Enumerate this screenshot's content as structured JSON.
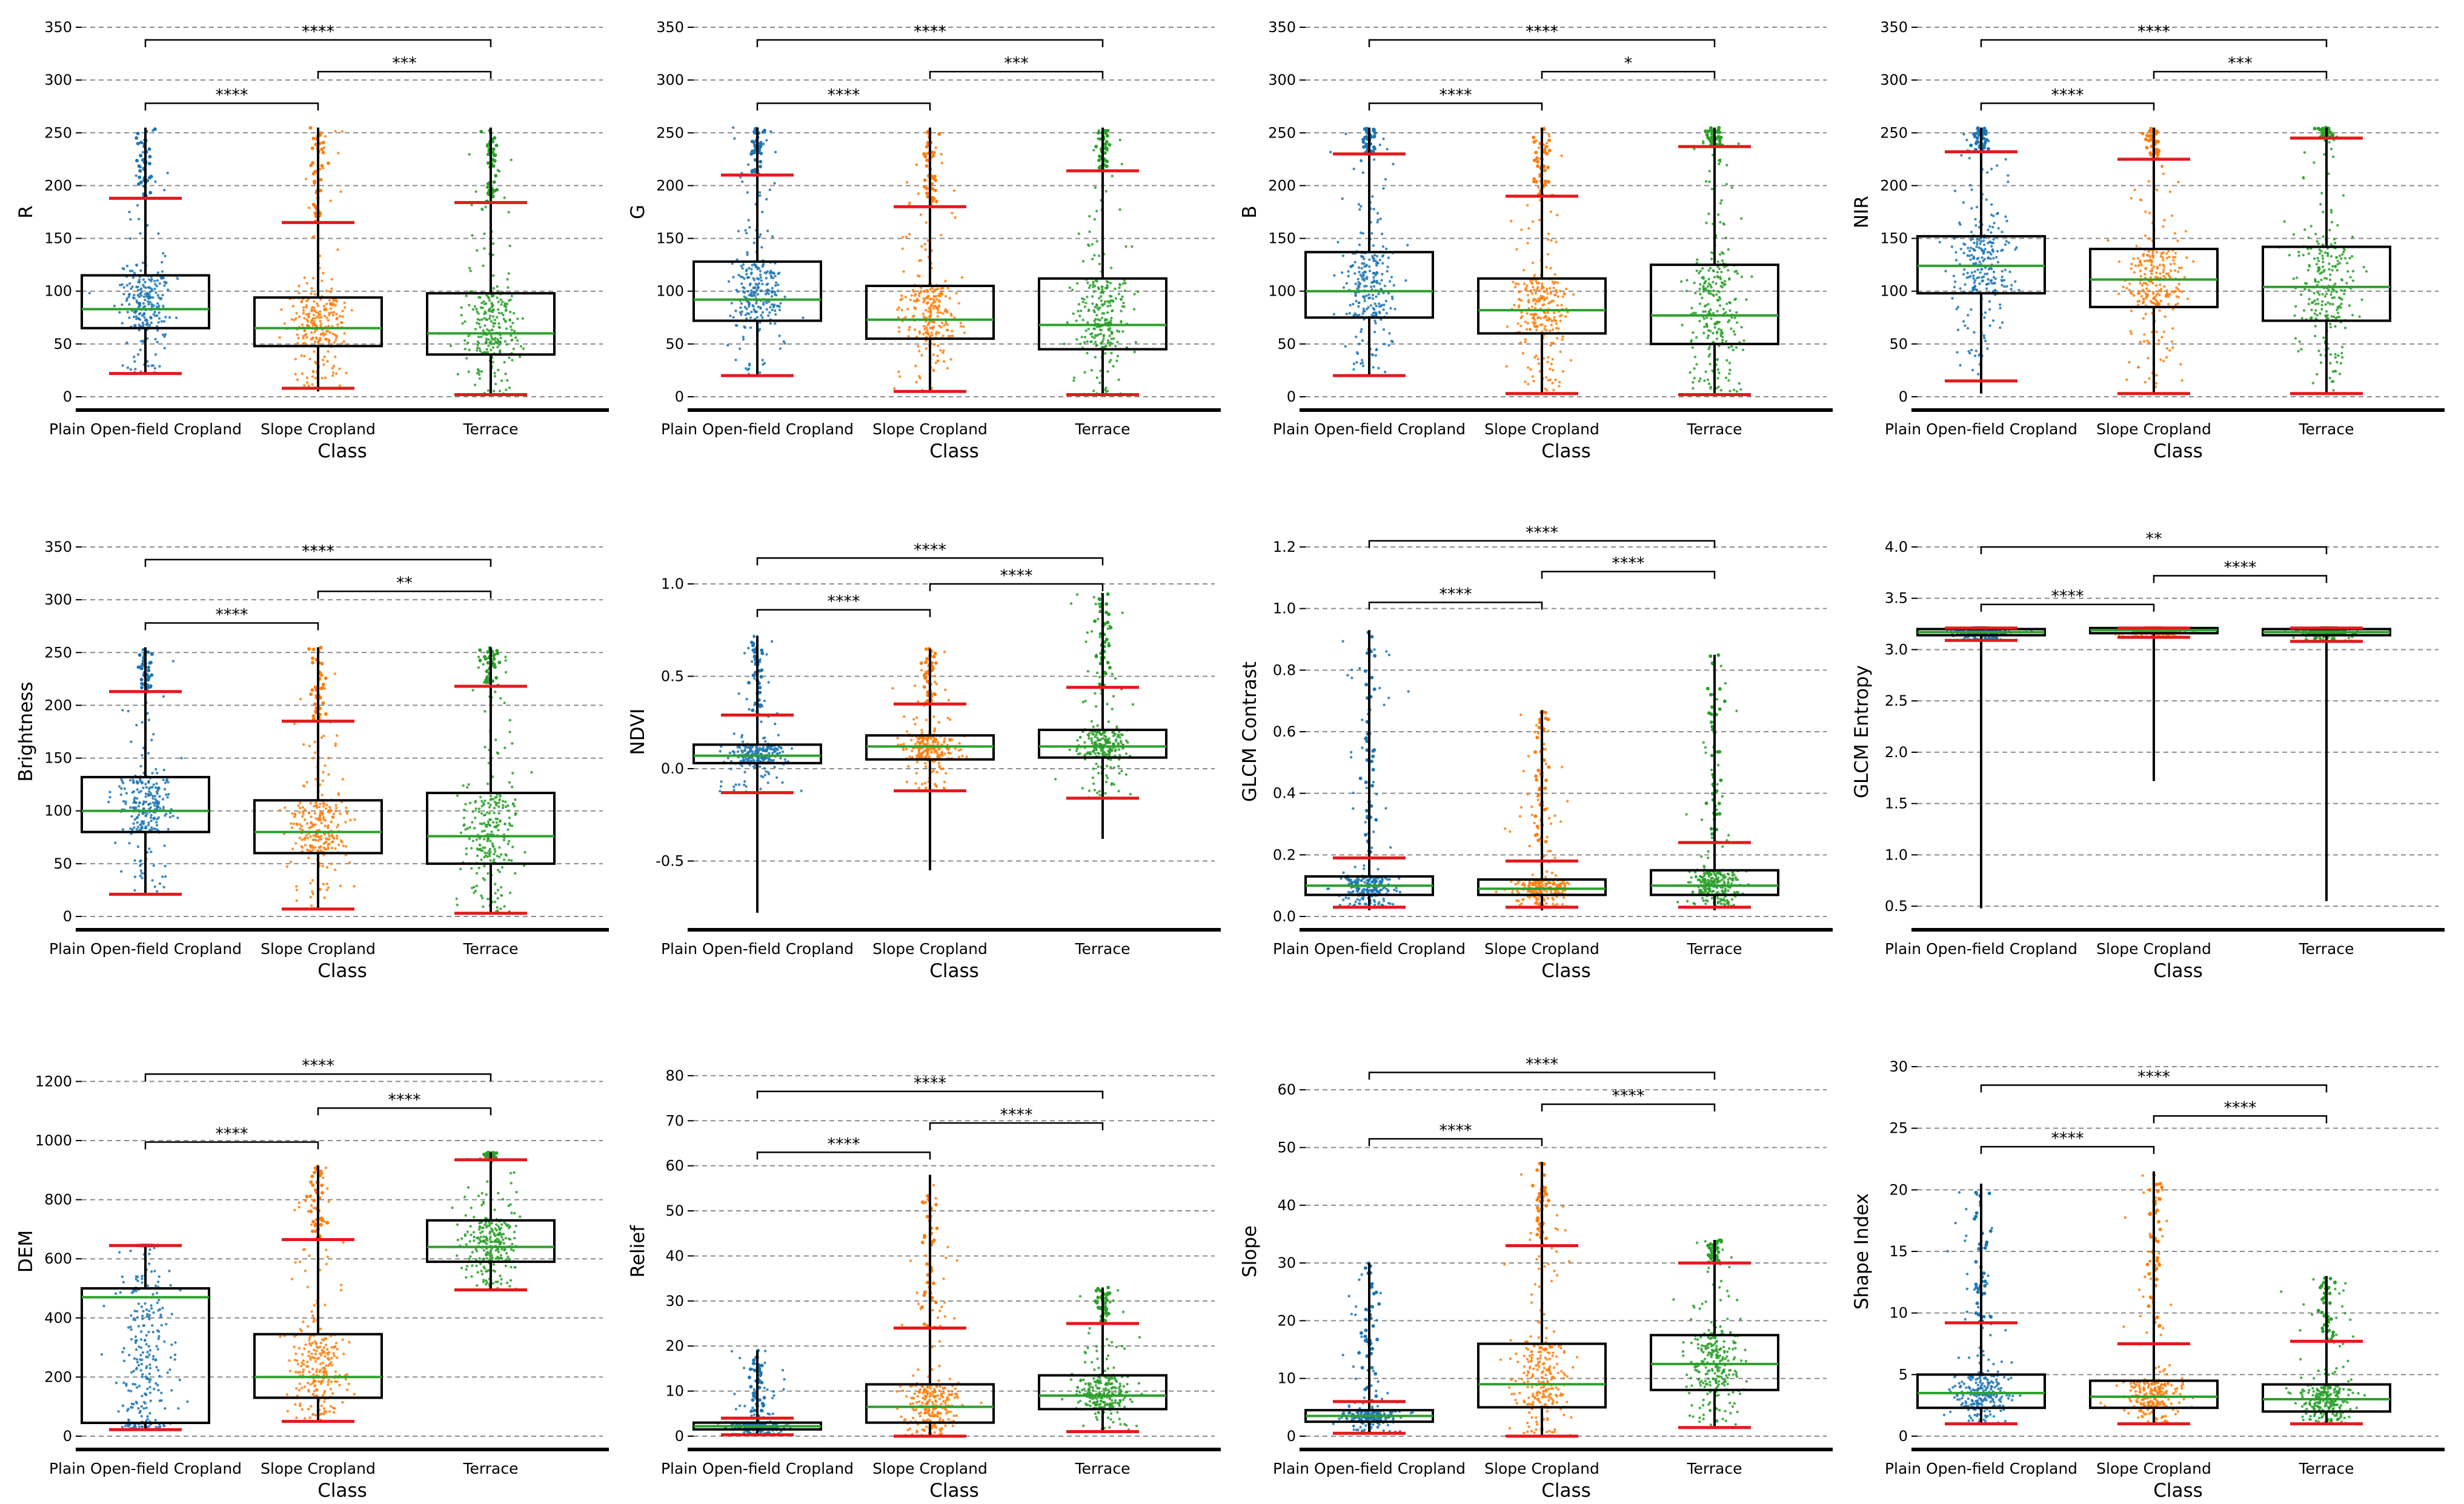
{
  "x_title": "Class",
  "categories": [
    "Plain Open-field Cropland",
    "Slope Cropland",
    "Terrace"
  ],
  "colors": {
    "Plain Open-field Cropland": "#1f77b4",
    "Slope Cropland": "#ff7f0e",
    "Terrace": "#2ca02c",
    "median": "#2ca02c",
    "cap": "#e31a1c"
  },
  "chart_data": [
    {
      "type": "box",
      "ylabel": "R",
      "ylim": [
        0,
        350
      ],
      "yticks": [
        0,
        50,
        100,
        150,
        200,
        250,
        300,
        350
      ],
      "boxes": [
        {
          "q1": 65,
          "median": 83,
          "q3": 115,
          "low": 22,
          "high": 188,
          "min": 22,
          "max": 255
        },
        {
          "q1": 48,
          "median": 65,
          "q3": 94,
          "low": 8,
          "high": 165,
          "min": 5,
          "max": 255
        },
        {
          "q1": 40,
          "median": 60,
          "q3": 98,
          "low": 2,
          "high": 184,
          "min": 2,
          "max": 255
        }
      ],
      "significance": [
        {
          "from": 0,
          "to": 1,
          "label": "****",
          "y": 278
        },
        {
          "from": 1,
          "to": 2,
          "label": "***",
          "y": 308
        },
        {
          "from": 0,
          "to": 2,
          "label": "****",
          "y": 338
        }
      ]
    },
    {
      "type": "box",
      "ylabel": "G",
      "ylim": [
        0,
        350
      ],
      "yticks": [
        0,
        50,
        100,
        150,
        200,
        250,
        300,
        350
      ],
      "boxes": [
        {
          "q1": 72,
          "median": 92,
          "q3": 128,
          "low": 20,
          "high": 210,
          "min": 20,
          "max": 255
        },
        {
          "q1": 55,
          "median": 73,
          "q3": 105,
          "low": 5,
          "high": 180,
          "min": 5,
          "max": 255
        },
        {
          "q1": 45,
          "median": 68,
          "q3": 112,
          "low": 2,
          "high": 214,
          "min": 2,
          "max": 255
        }
      ],
      "significance": [
        {
          "from": 0,
          "to": 1,
          "label": "****",
          "y": 278
        },
        {
          "from": 1,
          "to": 2,
          "label": "***",
          "y": 308
        },
        {
          "from": 0,
          "to": 2,
          "label": "****",
          "y": 338
        }
      ]
    },
    {
      "type": "box",
      "ylabel": "B",
      "ylim": [
        0,
        350
      ],
      "yticks": [
        0,
        50,
        100,
        150,
        200,
        250,
        300,
        350
      ],
      "boxes": [
        {
          "q1": 75,
          "median": 100,
          "q3": 137,
          "low": 20,
          "high": 230,
          "min": 20,
          "max": 255
        },
        {
          "q1": 60,
          "median": 82,
          "q3": 112,
          "low": 3,
          "high": 190,
          "min": 3,
          "max": 255
        },
        {
          "q1": 50,
          "median": 77,
          "q3": 125,
          "low": 2,
          "high": 237,
          "min": 2,
          "max": 255
        }
      ],
      "significance": [
        {
          "from": 0,
          "to": 1,
          "label": "****",
          "y": 278
        },
        {
          "from": 1,
          "to": 2,
          "label": "*",
          "y": 308
        },
        {
          "from": 0,
          "to": 2,
          "label": "****",
          "y": 338
        }
      ]
    },
    {
      "type": "box",
      "ylabel": "NIR",
      "ylim": [
        0,
        350
      ],
      "yticks": [
        0,
        50,
        100,
        150,
        200,
        250,
        300,
        350
      ],
      "boxes": [
        {
          "q1": 98,
          "median": 124,
          "q3": 152,
          "low": 15,
          "high": 232,
          "min": 3,
          "max": 255
        },
        {
          "q1": 85,
          "median": 111,
          "q3": 140,
          "low": 3,
          "high": 225,
          "min": 3,
          "max": 255
        },
        {
          "q1": 72,
          "median": 104,
          "q3": 142,
          "low": 3,
          "high": 245,
          "min": 3,
          "max": 255
        }
      ],
      "significance": [
        {
          "from": 0,
          "to": 1,
          "label": "****",
          "y": 278
        },
        {
          "from": 1,
          "to": 2,
          "label": "***",
          "y": 308
        },
        {
          "from": 0,
          "to": 2,
          "label": "****",
          "y": 338
        }
      ]
    },
    {
      "type": "box",
      "ylabel": "Brightness",
      "ylim": [
        0,
        350
      ],
      "yticks": [
        0,
        50,
        100,
        150,
        200,
        250,
        300,
        350
      ],
      "boxes": [
        {
          "q1": 80,
          "median": 100,
          "q3": 132,
          "low": 21,
          "high": 213,
          "min": 21,
          "max": 255
        },
        {
          "q1": 60,
          "median": 80,
          "q3": 110,
          "low": 7,
          "high": 185,
          "min": 7,
          "max": 255
        },
        {
          "q1": 50,
          "median": 76,
          "q3": 117,
          "low": 3,
          "high": 218,
          "min": 3,
          "max": 255
        }
      ],
      "significance": [
        {
          "from": 0,
          "to": 1,
          "label": "****",
          "y": 278
        },
        {
          "from": 1,
          "to": 2,
          "label": "**",
          "y": 308
        },
        {
          "from": 0,
          "to": 2,
          "label": "****",
          "y": 338
        }
      ]
    },
    {
      "type": "box",
      "ylabel": "NDVI",
      "ylim": [
        -0.8,
        1.2
      ],
      "yticks": [
        -0.5,
        0.0,
        0.5,
        1.0
      ],
      "boxes": [
        {
          "q1": 0.03,
          "median": 0.07,
          "q3": 0.13,
          "low": -0.13,
          "high": 0.29,
          "min": -0.78,
          "max": 0.72
        },
        {
          "q1": 0.05,
          "median": 0.12,
          "q3": 0.18,
          "low": -0.12,
          "high": 0.35,
          "min": -0.55,
          "max": 0.65
        },
        {
          "q1": 0.06,
          "median": 0.12,
          "q3": 0.21,
          "low": -0.16,
          "high": 0.44,
          "min": -0.38,
          "max": 0.95
        }
      ],
      "significance": [
        {
          "from": 0,
          "to": 1,
          "label": "****",
          "y": 0.86
        },
        {
          "from": 1,
          "to": 2,
          "label": "****",
          "y": 1.0
        },
        {
          "from": 0,
          "to": 2,
          "label": "****",
          "y": 1.14
        }
      ]
    },
    {
      "type": "box",
      "ylabel": "GLCM Contrast",
      "ylim": [
        0,
        1.2
      ],
      "yticks": [
        0.0,
        0.2,
        0.4,
        0.6,
        0.8,
        1.0,
        1.2
      ],
      "boxes": [
        {
          "q1": 0.07,
          "median": 0.1,
          "q3": 0.13,
          "low": 0.03,
          "high": 0.19,
          "min": 0.02,
          "max": 0.93
        },
        {
          "q1": 0.07,
          "median": 0.09,
          "q3": 0.12,
          "low": 0.03,
          "high": 0.18,
          "min": 0.02,
          "max": 0.67
        },
        {
          "q1": 0.07,
          "median": 0.1,
          "q3": 0.15,
          "low": 0.03,
          "high": 0.24,
          "min": 0.02,
          "max": 0.85
        }
      ],
      "significance": [
        {
          "from": 0,
          "to": 1,
          "label": "****",
          "y": 1.02
        },
        {
          "from": 1,
          "to": 2,
          "label": "****",
          "y": 1.12
        },
        {
          "from": 0,
          "to": 2,
          "label": "****",
          "y": 1.22
        }
      ]
    },
    {
      "type": "box",
      "ylabel": "GLCM Entropy",
      "ylim": [
        0.4,
        4.0
      ],
      "yticks": [
        0.5,
        1.0,
        1.5,
        2.0,
        2.5,
        3.0,
        3.5,
        4.0
      ],
      "boxes": [
        {
          "q1": 3.14,
          "median": 3.17,
          "q3": 3.2,
          "low": 3.09,
          "high": 3.21,
          "min": 0.48,
          "max": 3.21
        },
        {
          "q1": 3.16,
          "median": 3.19,
          "q3": 3.21,
          "low": 3.12,
          "high": 3.21,
          "min": 1.72,
          "max": 3.21
        },
        {
          "q1": 3.14,
          "median": 3.17,
          "q3": 3.2,
          "low": 3.08,
          "high": 3.21,
          "min": 0.55,
          "max": 3.21
        }
      ],
      "significance": [
        {
          "from": 0,
          "to": 1,
          "label": "****",
          "y": 3.44
        },
        {
          "from": 1,
          "to": 2,
          "label": "****",
          "y": 3.72
        },
        {
          "from": 0,
          "to": 2,
          "label": "**",
          "y": 4.0
        }
      ]
    },
    {
      "type": "box",
      "ylabel": "DEM",
      "ylim": [
        0,
        1250
      ],
      "yticks": [
        0,
        200,
        400,
        600,
        800,
        1000,
        1200
      ],
      "boxes": [
        {
          "q1": 45,
          "median": 470,
          "q3": 500,
          "low": 22,
          "high": 645,
          "min": 22,
          "max": 645
        },
        {
          "q1": 130,
          "median": 200,
          "q3": 345,
          "low": 50,
          "high": 665,
          "min": 50,
          "max": 915
        },
        {
          "q1": 590,
          "median": 640,
          "q3": 730,
          "low": 495,
          "high": 935,
          "min": 495,
          "max": 960
        }
      ],
      "significance": [
        {
          "from": 0,
          "to": 1,
          "label": "****",
          "y": 995
        },
        {
          "from": 1,
          "to": 2,
          "label": "****",
          "y": 1110
        },
        {
          "from": 0,
          "to": 2,
          "label": "****",
          "y": 1225
        }
      ]
    },
    {
      "type": "box",
      "ylabel": "Relief",
      "ylim": [
        0,
        82
      ],
      "yticks": [
        0,
        10,
        20,
        30,
        40,
        50,
        60,
        70,
        80
      ],
      "boxes": [
        {
          "q1": 1.5,
          "median": 2.2,
          "q3": 3.0,
          "low": 0.3,
          "high": 4.0,
          "min": 0.3,
          "max": 19
        },
        {
          "q1": 3.0,
          "median": 6.5,
          "q3": 11.5,
          "low": 0.0,
          "high": 24,
          "min": 0.0,
          "max": 58
        },
        {
          "q1": 6.0,
          "median": 9.0,
          "q3": 13.5,
          "low": 1.0,
          "high": 25,
          "min": 1.0,
          "max": 33
        }
      ],
      "significance": [
        {
          "from": 0,
          "to": 1,
          "label": "****",
          "y": 63
        },
        {
          "from": 1,
          "to": 2,
          "label": "****",
          "y": 69.5
        },
        {
          "from": 0,
          "to": 2,
          "label": "****",
          "y": 76.5
        }
      ]
    },
    {
      "type": "box",
      "ylabel": "Slope",
      "ylim": [
        0,
        64
      ],
      "yticks": [
        0,
        10,
        20,
        30,
        40,
        50,
        60
      ],
      "boxes": [
        {
          "q1": 2.5,
          "median": 3.5,
          "q3": 4.5,
          "low": 0.5,
          "high": 6.0,
          "min": 0.5,
          "max": 30
        },
        {
          "q1": 5.0,
          "median": 9.0,
          "q3": 16.0,
          "low": 0.0,
          "high": 33,
          "min": 0.0,
          "max": 47.5
        },
        {
          "q1": 8.0,
          "median": 12.5,
          "q3": 17.5,
          "low": 1.5,
          "high": 30,
          "min": 1.5,
          "max": 34
        }
      ],
      "significance": [
        {
          "from": 0,
          "to": 1,
          "label": "****",
          "y": 51.5
        },
        {
          "from": 1,
          "to": 2,
          "label": "****",
          "y": 57.5
        },
        {
          "from": 0,
          "to": 2,
          "label": "****",
          "y": 63
        }
      ]
    },
    {
      "type": "box",
      "ylabel": "Shape Index",
      "ylim": [
        0,
        30
      ],
      "yticks": [
        0,
        5,
        10,
        15,
        20,
        25,
        30
      ],
      "boxes": [
        {
          "q1": 2.3,
          "median": 3.5,
          "q3": 5.0,
          "low": 1.0,
          "high": 9.2,
          "min": 1.0,
          "max": 20.5
        },
        {
          "q1": 2.3,
          "median": 3.2,
          "q3": 4.5,
          "low": 1.0,
          "high": 7.5,
          "min": 1.0,
          "max": 21.5
        },
        {
          "q1": 2.0,
          "median": 3.0,
          "q3": 4.2,
          "low": 1.0,
          "high": 7.7,
          "min": 1.0,
          "max": 13.0
        }
      ],
      "significance": [
        {
          "from": 0,
          "to": 1,
          "label": "****",
          "y": 23.5
        },
        {
          "from": 1,
          "to": 2,
          "label": "****",
          "y": 26.0
        },
        {
          "from": 0,
          "to": 2,
          "label": "****",
          "y": 28.5
        }
      ]
    }
  ]
}
